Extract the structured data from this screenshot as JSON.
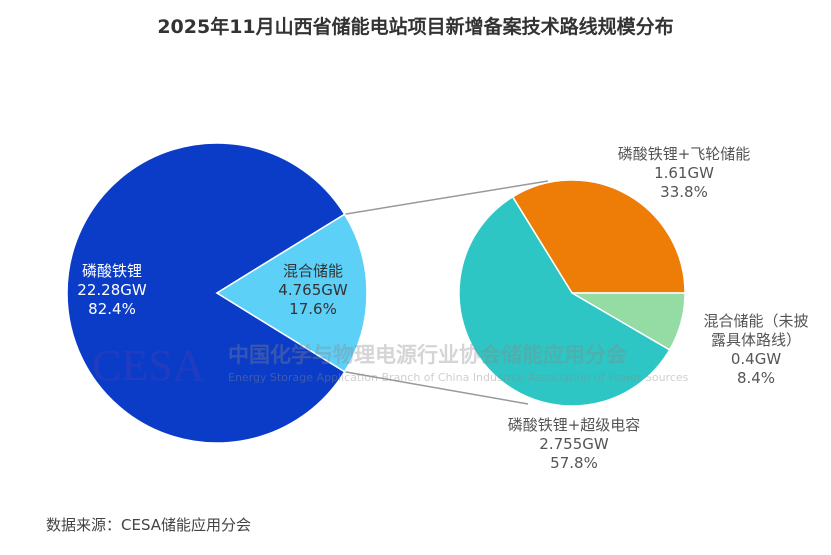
{
  "chart_data": [
    {
      "type": "pie",
      "title": "2025年11月山西省储能电站项目新增备案技术路线规模分布",
      "unit": "GW",
      "slices": [
        {
          "label": "磷酸铁锂",
          "value": 22.28,
          "value_text": "22.28GW",
          "percent": 82.4,
          "percent_text": "82.4%",
          "color": "#0a3cc8"
        },
        {
          "label": "混合储能",
          "value": 4.765,
          "value_text": "4.765GW",
          "percent": 17.6,
          "percent_text": "17.6%",
          "color": "#5dd0f8"
        }
      ]
    },
    {
      "type": "pie",
      "breakdown_of": "混合储能",
      "slices": [
        {
          "label": "磷酸铁锂+飞轮储能",
          "value": 1.61,
          "value_text": "1.61GW",
          "percent": 33.8,
          "percent_text": "33.8%",
          "color": "#ed7d06"
        },
        {
          "label": "混合储能（未披露具体路线）",
          "label_lines": [
            "混合储能（未披",
            "露具体路线）"
          ],
          "value": 0.4,
          "value_text": "0.4GW",
          "percent": 8.4,
          "percent_text": "8.4%",
          "color": "#94dca4"
        },
        {
          "label": "磷酸铁锂+超级电容",
          "value": 2.755,
          "value_text": "2.755GW",
          "percent": 57.8,
          "percent_text": "57.8%",
          "color": "#2ec6c4"
        }
      ]
    }
  ],
  "source": "数据来源：CESA储能应用分会",
  "watermark": {
    "logo": "CESA",
    "cn": "中国化学与物理电源行业协会储能应用分会",
    "en": "Energy Storage Application Branch of China Industrial Association of Power Sources"
  }
}
